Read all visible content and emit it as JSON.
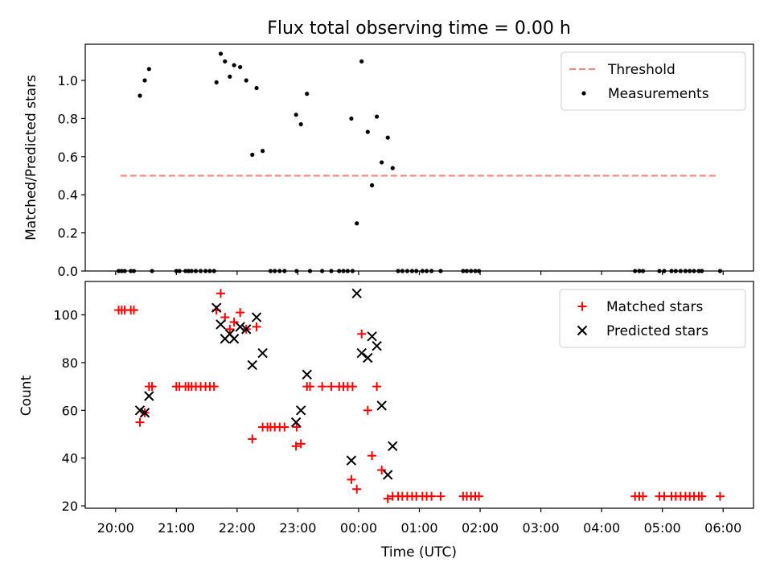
{
  "chart_data": [
    {
      "type": "scatter",
      "title": "Flux total observing time = 0.00 h",
      "xlabel": "",
      "ylabel": "Matched/Predicted stars",
      "ylim": [
        0,
        1.19
      ],
      "xlim_hours": [
        -0.5,
        10.5
      ],
      "y_ticks": [
        0.0,
        0.2,
        0.4,
        0.6,
        0.8,
        1.0
      ],
      "y_tick_labels": [
        "0.0",
        "0.2",
        "0.4",
        "0.6",
        "0.8",
        "1.0"
      ],
      "legend_position": "top-right",
      "grid": false,
      "threshold": {
        "name": "Threshold",
        "value": 0.5,
        "x_range_hours": [
          0.08,
          9.9
        ],
        "color": "#ff7f7f",
        "style": "dashed"
      },
      "series": [
        {
          "name": "Measurements",
          "color": "#000000",
          "marker": "dot",
          "points": [
            [
              0.05,
              0
            ],
            [
              0.1,
              0
            ],
            [
              0.15,
              0
            ],
            [
              0.25,
              0
            ],
            [
              0.3,
              0
            ],
            [
              0.4,
              0.92
            ],
            [
              0.48,
              1.0
            ],
            [
              0.55,
              1.06
            ],
            [
              0.6,
              0
            ],
            [
              1.0,
              0
            ],
            [
              1.05,
              0
            ],
            [
              1.15,
              0
            ],
            [
              1.2,
              0
            ],
            [
              1.25,
              0
            ],
            [
              1.32,
              0
            ],
            [
              1.4,
              0
            ],
            [
              1.48,
              0
            ],
            [
              1.55,
              0
            ],
            [
              1.62,
              0
            ],
            [
              1.66,
              0.99
            ],
            [
              1.73,
              1.14
            ],
            [
              1.8,
              1.1
            ],
            [
              1.88,
              1.02
            ],
            [
              1.95,
              1.08
            ],
            [
              2.05,
              1.07
            ],
            [
              2.15,
              1.0
            ],
            [
              2.25,
              0.61
            ],
            [
              2.32,
              0.96
            ],
            [
              2.42,
              0.63
            ],
            [
              2.55,
              0
            ],
            [
              2.62,
              0
            ],
            [
              2.7,
              0
            ],
            [
              2.78,
              0
            ],
            [
              2.97,
              0.82
            ],
            [
              3.05,
              0.77
            ],
            [
              3.15,
              0.93
            ],
            [
              2.98,
              0
            ],
            [
              3.2,
              0
            ],
            [
              3.4,
              0
            ],
            [
              3.55,
              0
            ],
            [
              3.68,
              0
            ],
            [
              3.75,
              0
            ],
            [
              3.82,
              0
            ],
            [
              3.9,
              0
            ],
            [
              3.88,
              0.8
            ],
            [
              3.97,
              0.25
            ],
            [
              4.05,
              1.1
            ],
            [
              4.15,
              0.73
            ],
            [
              4.22,
              0.45
            ],
            [
              4.3,
              0.81
            ],
            [
              4.38,
              0.57
            ],
            [
              4.48,
              0.7
            ],
            [
              4.56,
              0.54
            ],
            [
              4.65,
              0
            ],
            [
              4.72,
              0
            ],
            [
              4.8,
              0
            ],
            [
              4.88,
              0
            ],
            [
              4.95,
              0
            ],
            [
              5.05,
              0
            ],
            [
              5.12,
              0
            ],
            [
              5.2,
              0
            ],
            [
              5.35,
              0
            ],
            [
              5.72,
              0
            ],
            [
              5.78,
              0
            ],
            [
              5.85,
              0
            ],
            [
              5.92,
              0
            ],
            [
              5.98,
              0
            ],
            [
              8.55,
              0
            ],
            [
              8.62,
              0
            ],
            [
              8.68,
              0
            ],
            [
              8.95,
              0
            ],
            [
              9.03,
              0
            ],
            [
              9.15,
              0
            ],
            [
              9.22,
              0
            ],
            [
              9.3,
              0
            ],
            [
              9.38,
              0
            ],
            [
              9.45,
              0
            ],
            [
              9.52,
              0
            ],
            [
              9.6,
              0
            ],
            [
              9.65,
              0
            ],
            [
              9.95,
              0
            ]
          ]
        }
      ]
    },
    {
      "type": "scatter",
      "title": "",
      "xlabel": "Time (UTC)",
      "ylabel": "Count",
      "ylim": [
        19,
        114
      ],
      "xlim_hours": [
        -0.5,
        10.5
      ],
      "y_ticks": [
        20,
        40,
        60,
        80,
        100
      ],
      "y_tick_labels": [
        "20",
        "40",
        "60",
        "80",
        "100"
      ],
      "x_ticks_hours": [
        0,
        1,
        2,
        3,
        4,
        5,
        6,
        7,
        8,
        9,
        10
      ],
      "x_tick_labels": [
        "20:00",
        "21:00",
        "22:00",
        "23:00",
        "00:00",
        "01:00",
        "02:00",
        "03:00",
        "04:00",
        "05:00",
        "06:00"
      ],
      "legend_position": "top-right",
      "grid": false,
      "series": [
        {
          "name": "Matched stars",
          "color": "#ff0000",
          "marker": "plus",
          "points": [
            [
              0.05,
              102
            ],
            [
              0.1,
              102
            ],
            [
              0.15,
              102
            ],
            [
              0.25,
              102
            ],
            [
              0.3,
              102
            ],
            [
              0.4,
              55
            ],
            [
              0.48,
              59
            ],
            [
              0.55,
              70
            ],
            [
              0.6,
              70
            ],
            [
              1.0,
              70
            ],
            [
              1.05,
              70
            ],
            [
              1.15,
              70
            ],
            [
              1.2,
              70
            ],
            [
              1.25,
              70
            ],
            [
              1.32,
              70
            ],
            [
              1.4,
              70
            ],
            [
              1.48,
              70
            ],
            [
              1.55,
              70
            ],
            [
              1.62,
              70
            ],
            [
              1.66,
              102
            ],
            [
              1.73,
              109
            ],
            [
              1.8,
              99
            ],
            [
              1.88,
              94
            ],
            [
              1.95,
              97
            ],
            [
              2.05,
              101
            ],
            [
              2.15,
              94
            ],
            [
              2.25,
              48
            ],
            [
              2.32,
              95
            ],
            [
              2.42,
              53
            ],
            [
              2.5,
              53
            ],
            [
              2.55,
              53
            ],
            [
              2.62,
              53
            ],
            [
              2.7,
              53
            ],
            [
              2.78,
              53
            ],
            [
              2.97,
              45
            ],
            [
              3.05,
              46
            ],
            [
              3.15,
              70
            ],
            [
              2.98,
              53
            ],
            [
              3.2,
              70
            ],
            [
              3.4,
              70
            ],
            [
              3.55,
              70
            ],
            [
              3.68,
              70
            ],
            [
              3.75,
              70
            ],
            [
              3.82,
              70
            ],
            [
              3.9,
              70
            ],
            [
              3.88,
              31
            ],
            [
              3.97,
              27
            ],
            [
              4.05,
              92
            ],
            [
              4.15,
              60
            ],
            [
              4.22,
              41
            ],
            [
              4.3,
              70
            ],
            [
              4.38,
              35
            ],
            [
              4.48,
              23
            ],
            [
              4.56,
              24
            ],
            [
              4.65,
              24
            ],
            [
              4.72,
              24
            ],
            [
              4.8,
              24
            ],
            [
              4.88,
              24
            ],
            [
              4.95,
              24
            ],
            [
              5.05,
              24
            ],
            [
              5.12,
              24
            ],
            [
              5.2,
              24
            ],
            [
              5.35,
              24
            ],
            [
              5.72,
              24
            ],
            [
              5.78,
              24
            ],
            [
              5.85,
              24
            ],
            [
              5.92,
              24
            ],
            [
              5.98,
              24
            ],
            [
              8.55,
              24
            ],
            [
              8.62,
              24
            ],
            [
              8.68,
              24
            ],
            [
              8.95,
              24
            ],
            [
              9.03,
              24
            ],
            [
              9.15,
              24
            ],
            [
              9.22,
              24
            ],
            [
              9.3,
              24
            ],
            [
              9.38,
              24
            ],
            [
              9.45,
              24
            ],
            [
              9.52,
              24
            ],
            [
              9.6,
              24
            ],
            [
              9.65,
              24
            ],
            [
              9.95,
              24
            ]
          ]
        },
        {
          "name": "Predicted stars",
          "color": "#000000",
          "marker": "x",
          "points": [
            [
              0.4,
              60
            ],
            [
              0.48,
              59
            ],
            [
              0.55,
              66
            ],
            [
              1.66,
              103
            ],
            [
              1.73,
              96
            ],
            [
              1.8,
              90
            ],
            [
              1.88,
              92
            ],
            [
              1.95,
              90
            ],
            [
              2.05,
              95
            ],
            [
              2.15,
              94
            ],
            [
              2.25,
              79
            ],
            [
              2.32,
              99
            ],
            [
              2.42,
              84
            ],
            [
              2.97,
              55
            ],
            [
              3.05,
              60
            ],
            [
              3.15,
              75
            ],
            [
              3.88,
              39
            ],
            [
              3.97,
              109
            ],
            [
              4.05,
              84
            ],
            [
              4.15,
              82
            ],
            [
              4.22,
              91
            ],
            [
              4.3,
              87
            ],
            [
              4.38,
              62
            ],
            [
              4.48,
              33
            ],
            [
              4.56,
              45
            ]
          ]
        }
      ]
    }
  ]
}
